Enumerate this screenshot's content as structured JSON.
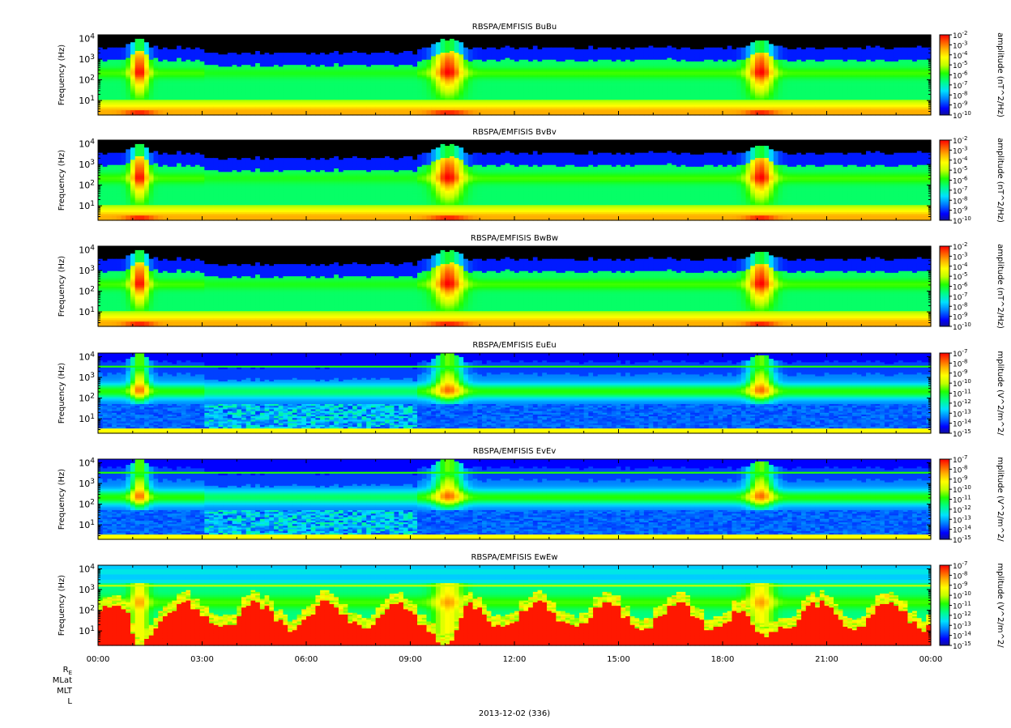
{
  "chart_data": [
    {
      "type": "heatmap",
      "title": "RBSPA/EMFISIS  BuBu",
      "ylabel": "Frequency (Hz)",
      "yscale": "log",
      "ylim": [
        2,
        15000
      ],
      "yticks": [
        "10^1",
        "10^2",
        "10^3",
        "10^4"
      ],
      "colorbar_label": "amplitude (nT^2/Hz)",
      "colorbar_ticks": [
        "10^-2",
        "10^-3",
        "10^-4",
        "10^-5",
        "10^-6",
        "10^-7",
        "10^-8",
        "10^-9",
        "10^-10"
      ],
      "colorbar_range": [
        -10,
        -2
      ]
    },
    {
      "type": "heatmap",
      "title": "RBSPA/EMFISIS  BvBv",
      "ylabel": "Frequency (Hz)",
      "yscale": "log",
      "ylim": [
        2,
        15000
      ],
      "yticks": [
        "10^1",
        "10^2",
        "10^3",
        "10^4"
      ],
      "colorbar_label": "amplitude (nT^2/Hz)",
      "colorbar_ticks": [
        "10^-2",
        "10^-3",
        "10^-4",
        "10^-5",
        "10^-6",
        "10^-7",
        "10^-8",
        "10^-9",
        "10^-10"
      ],
      "colorbar_range": [
        -10,
        -2
      ]
    },
    {
      "type": "heatmap",
      "title": "RBSPA/EMFISIS  BwBw",
      "ylabel": "Frequency (Hz)",
      "yscale": "log",
      "ylim": [
        2,
        15000
      ],
      "yticks": [
        "10^1",
        "10^2",
        "10^3",
        "10^4"
      ],
      "colorbar_label": "amplitude (nT^2/Hz)",
      "colorbar_ticks": [
        "10^-2",
        "10^-3",
        "10^-4",
        "10^-5",
        "10^-6",
        "10^-7",
        "10^-8",
        "10^-9",
        "10^-10"
      ],
      "colorbar_range": [
        -10,
        -2
      ]
    },
    {
      "type": "heatmap",
      "title": "RBSPA/EMFISIS  EuEu",
      "ylabel": "Frequency (Hz)",
      "yscale": "log",
      "ylim": [
        2,
        15000
      ],
      "yticks": [
        "10^1",
        "10^2",
        "10^3",
        "10^4"
      ],
      "colorbar_label": "mplitude (V^2/m^2/",
      "colorbar_ticks": [
        "10^-7",
        "10^-8",
        "10^-9",
        "10^-10",
        "10^-11",
        "10^-12",
        "10^-13",
        "10^-14",
        "10^-15"
      ],
      "colorbar_range": [
        -15,
        -7
      ]
    },
    {
      "type": "heatmap",
      "title": "RBSPA/EMFISIS  EvEv",
      "ylabel": "Frequency (Hz)",
      "yscale": "log",
      "ylim": [
        2,
        15000
      ],
      "yticks": [
        "10^1",
        "10^2",
        "10^3",
        "10^4"
      ],
      "colorbar_label": "mplitude (V^2/m^2/",
      "colorbar_ticks": [
        "10^-7",
        "10^-8",
        "10^-9",
        "10^-10",
        "10^-11",
        "10^-12",
        "10^-13",
        "10^-14",
        "10^-15"
      ],
      "colorbar_range": [
        -15,
        -7
      ]
    },
    {
      "type": "heatmap",
      "title": "RBSPA/EMFISIS  EwEw",
      "ylabel": "Frequency (Hz)",
      "yscale": "log",
      "ylim": [
        2,
        15000
      ],
      "yticks": [
        "10^1",
        "10^2",
        "10^3",
        "10^4"
      ],
      "colorbar_label": "mplitude (V^2/m^2/",
      "colorbar_ticks": [
        "10^-7",
        "10^-8",
        "10^-9",
        "10^-10",
        "10^-11",
        "10^-12",
        "10^-13",
        "10^-14",
        "10^-15"
      ],
      "colorbar_range": [
        -15,
        -7
      ]
    }
  ],
  "x_axis": {
    "ticks": [
      "00:00",
      "03:00",
      "06:00",
      "09:00",
      "12:00",
      "15:00",
      "18:00",
      "21:00",
      "00:00"
    ],
    "range_hours": [
      0,
      24
    ],
    "row_labels": [
      "RE",
      "MLat",
      "MLT",
      "L"
    ],
    "date_label": "2013-12-02 (336)"
  },
  "colors": {
    "colorbar_scale": [
      "#10109a",
      "#0000ff",
      "#0080ff",
      "#00e0ff",
      "#00ff80",
      "#20ff00",
      "#c0ff00",
      "#ffff00",
      "#ffb000",
      "#ff5000",
      "#ff0000"
    ],
    "no_data": "#000000"
  }
}
